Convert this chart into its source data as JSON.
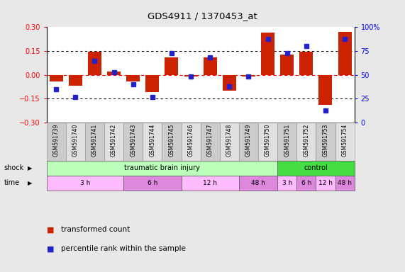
{
  "title": "GDS4911 / 1370453_at",
  "samples": [
    "GSM591739",
    "GSM591740",
    "GSM591741",
    "GSM591742",
    "GSM591743",
    "GSM591744",
    "GSM591745",
    "GSM591746",
    "GSM591747",
    "GSM591748",
    "GSM591749",
    "GSM591750",
    "GSM591751",
    "GSM591752",
    "GSM591753",
    "GSM591754"
  ],
  "transformed_count": [
    -0.04,
    -0.07,
    0.145,
    0.02,
    -0.04,
    -0.11,
    0.11,
    -0.01,
    0.11,
    -0.1,
    -0.01,
    0.265,
    0.13,
    0.145,
    -0.19,
    0.27
  ],
  "percentile_rank": [
    35,
    27,
    65,
    53,
    40,
    27,
    73,
    48,
    68,
    38,
    48,
    88,
    73,
    80,
    13,
    88
  ],
  "bar_color": "#cc2200",
  "dot_color": "#2222cc",
  "ylim_left": [
    -0.3,
    0.3
  ],
  "ylim_right": [
    0,
    100
  ],
  "yticks_left": [
    -0.3,
    -0.15,
    0.0,
    0.15,
    0.3
  ],
  "yticks_right": [
    0,
    25,
    50,
    75,
    100
  ],
  "hlines": [
    0.15,
    -0.15
  ],
  "shock_groups": [
    {
      "label": "traumatic brain injury",
      "start": 0,
      "end": 11,
      "color": "#bbffbb"
    },
    {
      "label": "control",
      "start": 12,
      "end": 15,
      "color": "#44dd44"
    }
  ],
  "time_groups": [
    {
      "label": "3 h",
      "start": 0,
      "end": 3,
      "color": "#ffbbff"
    },
    {
      "label": "6 h",
      "start": 4,
      "end": 6,
      "color": "#dd88dd"
    },
    {
      "label": "12 h",
      "start": 7,
      "end": 9,
      "color": "#ffbbff"
    },
    {
      "label": "48 h",
      "start": 10,
      "end": 11,
      "color": "#dd88dd"
    },
    {
      "label": "3 h",
      "start": 12,
      "end": 12,
      "color": "#ffbbff"
    },
    {
      "label": "6 h",
      "start": 13,
      "end": 13,
      "color": "#dd88dd"
    },
    {
      "label": "12 h",
      "start": 14,
      "end": 14,
      "color": "#ffbbff"
    },
    {
      "label": "48 h",
      "start": 15,
      "end": 15,
      "color": "#dd88dd"
    }
  ],
  "shock_label": "shock",
  "time_label": "time",
  "legend_bar": "transformed count",
  "legend_dot": "percentile rank within the sample",
  "bg_color": "#e8e8e8",
  "plot_bg": "#ffffff",
  "sample_even_color": "#cccccc",
  "sample_odd_color": "#e0e0e0"
}
